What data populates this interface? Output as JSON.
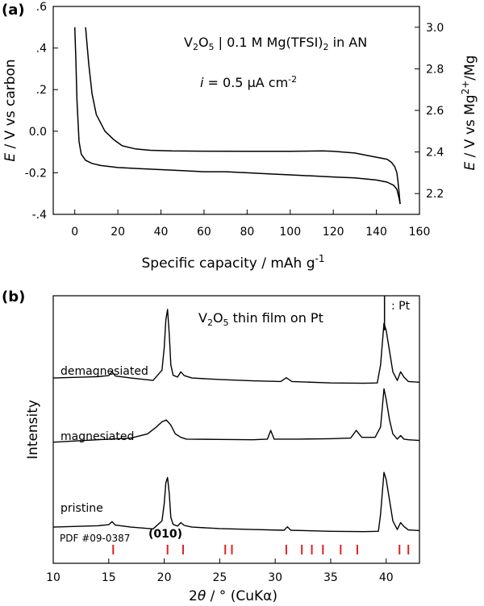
{
  "panel_a_label": "(a)",
  "panel_b_label": "(b)",
  "chart_data": [
    {
      "type": "line",
      "xlabel": "Specific capacity / mAh g",
      "xlabel_sup": "-1",
      "ylabel_left": "E / V vs  carbon",
      "ylabel_right_prefix": "E / V vs  Mg",
      "ylabel_right_sup": "2+",
      "ylabel_right_suffix": "/Mg",
      "xlim": [
        -10,
        160
      ],
      "ylim": [
        -0.4,
        0.6
      ],
      "ylim_right": [
        2.1,
        3.1
      ],
      "x_ticks": [
        "0",
        "20",
        "40",
        "60",
        "80",
        "100",
        "120",
        "140",
        "160"
      ],
      "y_ticks_left": [
        "-.4",
        "-0.2",
        "0.0",
        ".2",
        ".4",
        ".6"
      ],
      "y_ticks_right": [
        "2.2",
        "2.4",
        "2.6",
        "2.8",
        "3.0"
      ],
      "annotation_line1": "V2O5 | 0.1 M Mg(TFSI)2 in AN",
      "annotation_line2": "i = 0.5 μA cm-2",
      "series": [
        {
          "x": [
            0,
            0.5,
            1,
            2,
            3,
            5,
            8,
            12,
            20,
            30,
            40,
            50,
            60,
            70,
            80,
            90,
            100,
            110,
            120,
            130,
            140,
            145,
            148,
            149.5,
            150.5,
            151
          ],
          "y": [
            0.5,
            0.35,
            0.15,
            -0.05,
            -0.11,
            -0.14,
            -0.155,
            -0.165,
            -0.175,
            -0.18,
            -0.185,
            -0.19,
            -0.195,
            -0.195,
            -0.2,
            -0.205,
            -0.21,
            -0.215,
            -0.22,
            -0.225,
            -0.235,
            -0.245,
            -0.26,
            -0.28,
            -0.32,
            -0.35
          ]
        },
        {
          "x": [
            151,
            150.5,
            150,
            149.5,
            148.5,
            147,
            145,
            140,
            135,
            130,
            120,
            115,
            100,
            80,
            60,
            45,
            35,
            28,
            22,
            18,
            14,
            10,
            8,
            6.5,
            5.5,
            5
          ],
          "y": [
            -0.35,
            -0.29,
            -0.24,
            -0.2,
            -0.17,
            -0.15,
            -0.135,
            -0.125,
            -0.115,
            -0.105,
            -0.097,
            -0.095,
            -0.097,
            -0.097,
            -0.096,
            -0.095,
            -0.092,
            -0.085,
            -0.07,
            -0.04,
            0.0,
            0.08,
            0.18,
            0.32,
            0.44,
            0.5
          ]
        }
      ]
    },
    {
      "type": "line",
      "xlabel": "2θ / ° (CuKα)",
      "ylabel": "Intensity",
      "xlim": [
        10,
        43
      ],
      "x_ticks": [
        "10",
        "15",
        "20",
        "25",
        "30",
        "35",
        "40"
      ],
      "annotation_title": "V2O5 thin film on Pt",
      "pt_label": ": Pt",
      "peak_label": "(010)",
      "reference_label": "PDF #09-0387",
      "reference_color": "#e02020",
      "reference_peaks": [
        15.4,
        20.3,
        21.7,
        25.5,
        26.1,
        31.0,
        32.4,
        33.3,
        34.3,
        35.9,
        37.4,
        41.2,
        42.0
      ],
      "series": [
        {
          "name": "demagnesiated",
          "x": [
            10,
            14,
            15,
            15.3,
            15.6,
            17,
            19,
            19.8,
            20.0,
            20.15,
            20.3,
            20.45,
            20.6,
            20.8,
            21.2,
            21.5,
            21.8,
            22.5,
            25,
            28,
            30.5,
            31,
            31.5,
            35,
            38,
            39.2,
            39.5,
            39.8,
            40.0,
            40.3,
            40.6,
            41.0,
            41.3,
            41.6,
            42,
            43
          ],
          "y": [
            0.2,
            0.6,
            0.9,
            2.0,
            0.8,
            0.2,
            -0.5,
            2.5,
            9.0,
            17,
            20,
            13,
            4.0,
            1.0,
            0.5,
            2.0,
            0.9,
            0.2,
            -0.2,
            -0.6,
            -0.8,
            0.3,
            -0.8,
            -1.2,
            -1.3,
            -1.2,
            4.0,
            16,
            14,
            8,
            2.0,
            -0.5,
            2.0,
            0.5,
            -0.8,
            -1.0
          ]
        },
        {
          "name": "magnesiated",
          "x": [
            10,
            14,
            17,
            18.5,
            19.3,
            19.8,
            20.2,
            20.6,
            21.0,
            21.5,
            22,
            25,
            28,
            29.3,
            29.6,
            29.9,
            32,
            35,
            36.8,
            37.3,
            37.8,
            39,
            39.5,
            39.8,
            40.0,
            40.3,
            40.6,
            41.0,
            41.3,
            41.6,
            42,
            43
          ],
          "y": [
            -0.4,
            0.3,
            0.8,
            2.0,
            4.0,
            5.5,
            6.0,
            4.5,
            2.0,
            1.0,
            0.5,
            0.4,
            0.3,
            0.5,
            3.0,
            0.5,
            0.5,
            0.6,
            0.8,
            3.0,
            1.0,
            1.0,
            4.0,
            15,
            12,
            6,
            2.0,
            0.5,
            1.5,
            0.5,
            0.3,
            0.1
          ]
        },
        {
          "name": "pristine",
          "x": [
            10,
            14,
            15,
            15.3,
            15.6,
            17,
            19,
            19.8,
            20.0,
            20.15,
            20.3,
            20.45,
            20.6,
            20.8,
            21.2,
            21.5,
            21.8,
            22.5,
            25,
            28,
            30.8,
            31.1,
            31.4,
            35,
            38,
            39.3,
            39.5,
            39.8,
            40.0,
            40.3,
            40.6,
            41.0,
            41.3,
            41.6,
            42,
            43
          ],
          "y": [
            0.2,
            0.6,
            0.9,
            1.8,
            0.8,
            0.2,
            -0.3,
            2.0,
            7.0,
            13,
            14.5,
            10,
            3.0,
            1.0,
            0.5,
            1.5,
            0.7,
            0.2,
            -0.2,
            -0.5,
            -0.7,
            0.3,
            -0.7,
            -1.0,
            -1.1,
            -1.0,
            4.0,
            16,
            14,
            8,
            2.0,
            -0.5,
            1.5,
            0.4,
            -0.6,
            -0.8
          ]
        }
      ]
    }
  ]
}
